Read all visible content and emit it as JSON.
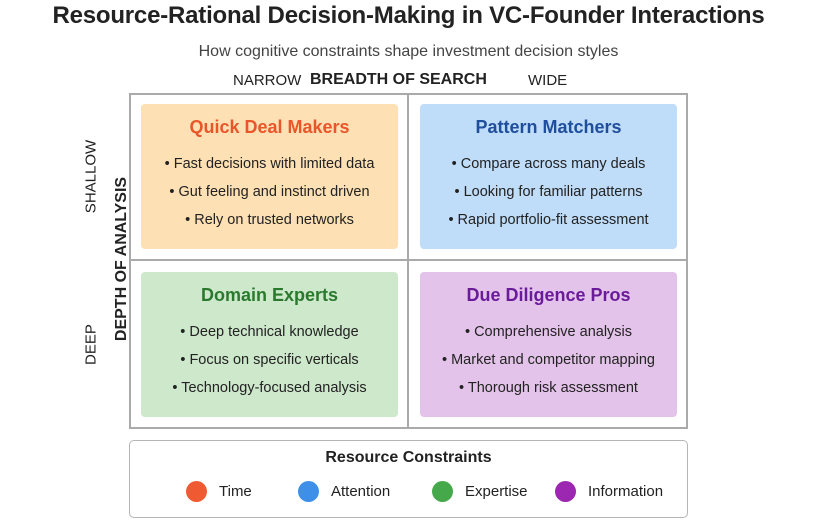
{
  "title": "Resource-Rational Decision-Making in VC-Founder Interactions",
  "subtitle": "How cognitive constraints shape investment decision styles",
  "x_axis": {
    "low": "NARROW",
    "label": "BREADTH OF SEARCH",
    "high": "WIDE"
  },
  "y_axis": {
    "low": "SHALLOW",
    "label": "DEPTH OF ANALYSIS",
    "high": "DEEP"
  },
  "quadrants": [
    {
      "title": "Quick Deal Makers",
      "title_color": "#e8562a",
      "bg": "#fde0b4",
      "items": [
        "Fast decisions with limited data",
        "Gut feeling and instinct driven",
        "Rely on trusted networks"
      ]
    },
    {
      "title": "Pattern Matchers",
      "title_color": "#1f4e9d",
      "bg": "#bfdcf8",
      "items": [
        "Compare across many deals",
        "Looking for familiar patterns",
        "Rapid portfolio-fit assessment"
      ]
    },
    {
      "title": "Domain Experts",
      "title_color": "#2a7a2e",
      "bg": "#cde8cb",
      "items": [
        "Deep technical knowledge",
        "Focus on specific verticals",
        "Technology-focused analysis"
      ]
    },
    {
      "title": "Due Diligence Pros",
      "title_color": "#6a1b9a",
      "bg": "#e4c3ea",
      "items": [
        "Comprehensive analysis",
        "Market and competitor mapping",
        "Thorough risk assessment"
      ]
    }
  ],
  "legend": {
    "title": "Resource Constraints",
    "items": [
      {
        "label": "Time",
        "color": "#f05a32"
      },
      {
        "label": "Attention",
        "color": "#3d8fe8"
      },
      {
        "label": "Expertise",
        "color": "#45a84a"
      },
      {
        "label": "Information",
        "color": "#9c27b0"
      }
    ]
  }
}
